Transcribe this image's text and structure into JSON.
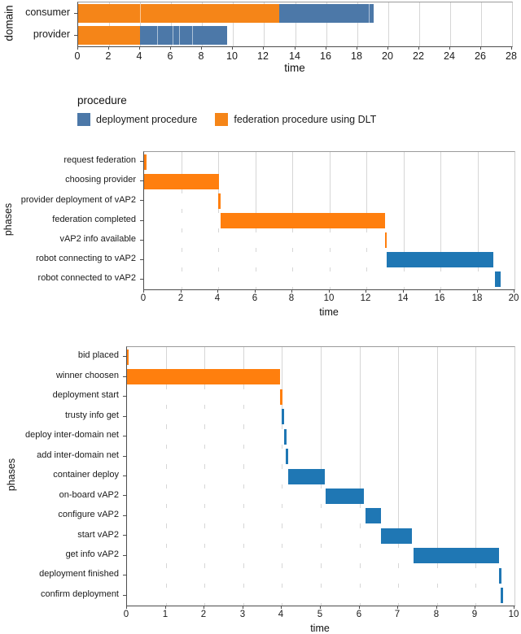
{
  "figure": {
    "legend": {
      "title": "procedure",
      "items": [
        {
          "id": "deployment",
          "label": "deployment procedure",
          "color": "#4c78a8"
        },
        {
          "id": "federation",
          "label": "federation procedure using DLT",
          "color": "#f58518"
        }
      ]
    }
  },
  "chart_data": [
    {
      "type": "bar",
      "variant": "gantt-timeline",
      "title": "",
      "ylabel": "domain",
      "xlabel": "time",
      "xlim": [
        0,
        28
      ],
      "xtick_step": 2,
      "grid": true,
      "categories": [
        "consumer",
        "provider"
      ],
      "palette": {
        "deployment procedure": "#4c78a8",
        "federation procedure using DLT": "#f58518"
      },
      "bars": [
        {
          "category": "consumer",
          "series": "federation procedure using DLT",
          "start": 0,
          "end": 13.0,
          "dividers": [
            4.0
          ]
        },
        {
          "category": "consumer",
          "series": "deployment procedure",
          "start": 13.0,
          "end": 19.1,
          "dividers": [
            18.8
          ]
        },
        {
          "category": "provider",
          "series": "federation procedure using DLT",
          "start": 0,
          "end": 4.0
        },
        {
          "category": "provider",
          "series": "deployment procedure",
          "start": 4.0,
          "end": 9.6,
          "dividers": [
            5.1,
            6.1,
            6.5,
            7.35
          ]
        }
      ]
    },
    {
      "type": "bar",
      "variant": "gantt-timeline",
      "title": "",
      "ylabel": "phases",
      "xlabel": "time",
      "xlim": [
        0,
        20
      ],
      "xtick_step": 2,
      "grid": true,
      "categories": [
        "request federation",
        "choosing provider",
        "provider deployment of vAP2",
        "federation completed",
        "vAP2 info available",
        "robot connecting to vAP2",
        "robot connected to vAP2"
      ],
      "palette": {
        "deployment procedure": "#1f77b4",
        "federation procedure using DLT": "#ff7f0e"
      },
      "bars": [
        {
          "category": "request federation",
          "series": "federation procedure using DLT",
          "start": 0,
          "end": 0.12
        },
        {
          "category": "choosing provider",
          "series": "federation procedure using DLT",
          "start": 0,
          "end": 4.05
        },
        {
          "category": "provider deployment of vAP2",
          "series": "federation procedure using DLT",
          "start": 4.0,
          "end": 4.12
        },
        {
          "category": "federation completed",
          "series": "federation procedure using DLT",
          "start": 4.12,
          "end": 13.0
        },
        {
          "category": "vAP2 info available",
          "series": "federation procedure using DLT",
          "start": 13.0,
          "end": 13.1
        },
        {
          "category": "robot connecting to vAP2",
          "series": "deployment procedure",
          "start": 13.1,
          "end": 18.85
        },
        {
          "category": "robot connected to vAP2",
          "series": "deployment procedure",
          "start": 18.95,
          "end": 19.25
        }
      ]
    },
    {
      "type": "bar",
      "variant": "gantt-timeline",
      "title": "",
      "ylabel": "phases",
      "xlabel": "time",
      "xlim": [
        0,
        10
      ],
      "xtick_step": 1,
      "grid": true,
      "categories": [
        "bid placed",
        "winner choosen",
        "deployment start",
        "trusty info get",
        "deploy inter-domain net",
        "add inter-domain net",
        "container deploy",
        "on-board vAP2",
        "configure vAP2",
        "start vAP2",
        "get info vAP2",
        "deployment finished",
        "confirm deployment"
      ],
      "palette": {
        "deployment procedure": "#1f77b4",
        "federation procedure using DLT": "#ff7f0e"
      },
      "bars": [
        {
          "category": "bid placed",
          "series": "federation procedure using DLT",
          "start": 0,
          "end": 0.05
        },
        {
          "category": "winner choosen",
          "series": "federation procedure using DLT",
          "start": 0,
          "end": 3.95
        },
        {
          "category": "deployment start",
          "series": "federation procedure using DLT",
          "start": 3.95,
          "end": 4.02
        },
        {
          "category": "trusty info get",
          "series": "deployment procedure",
          "start": 4.0,
          "end": 4.07
        },
        {
          "category": "deploy inter-domain net",
          "series": "deployment procedure",
          "start": 4.05,
          "end": 4.12
        },
        {
          "category": "add inter-domain net",
          "series": "deployment procedure",
          "start": 4.1,
          "end": 4.16
        },
        {
          "category": "container deploy",
          "series": "deployment procedure",
          "start": 4.16,
          "end": 5.1
        },
        {
          "category": "on-board vAP2",
          "series": "deployment procedure",
          "start": 5.12,
          "end": 6.1
        },
        {
          "category": "configure vAP2",
          "series": "deployment procedure",
          "start": 6.15,
          "end": 6.55
        },
        {
          "category": "start vAP2",
          "series": "deployment procedure",
          "start": 6.55,
          "end": 7.35
        },
        {
          "category": "get info vAP2",
          "series": "deployment procedure",
          "start": 7.4,
          "end": 9.6
        },
        {
          "category": "deployment finished",
          "series": "deployment procedure",
          "start": 9.6,
          "end": 9.66
        },
        {
          "category": "confirm deployment",
          "series": "deployment procedure",
          "start": 9.65,
          "end": 9.72
        }
      ]
    }
  ]
}
